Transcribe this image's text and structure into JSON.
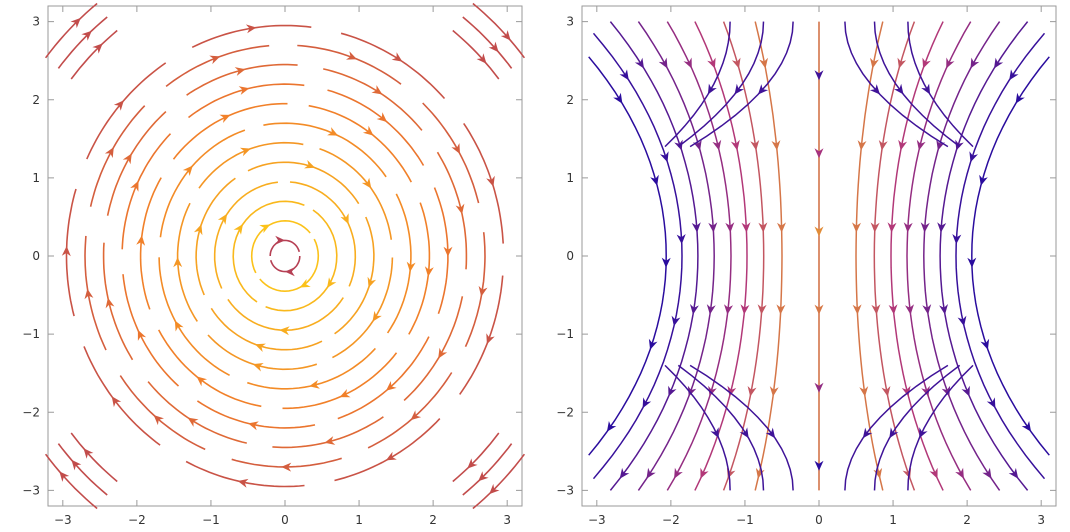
{
  "chart_data": [
    {
      "type": "streamplot",
      "field": "rotation",
      "xlim": [
        -3.2,
        3.2
      ],
      "ylim": [
        -3.2,
        3.2
      ],
      "xticks": [
        -3,
        -2,
        -1,
        0,
        1,
        2,
        3
      ],
      "yticks": [
        -3,
        -2,
        -1,
        0,
        1,
        2,
        3
      ],
      "grid": false,
      "color_scheme": {
        "low": "#a8325e",
        "mid": "#f07a2a",
        "high": "#fbc21a"
      }
    },
    {
      "type": "streamplot",
      "field": "saddle",
      "xlim": [
        -3.2,
        3.2
      ],
      "ylim": [
        -3.2,
        3.2
      ],
      "xticks": [
        -3,
        -2,
        -1,
        0,
        1,
        2,
        3
      ],
      "yticks": [
        -3,
        -2,
        -1,
        0,
        1,
        2,
        3
      ],
      "grid": false,
      "color_scheme": {
        "low": "#2a0c9e",
        "mid": "#b0357a",
        "high": "#f7b21a"
      }
    }
  ],
  "tick_text": {
    "p0": {
      "x": [
        "−3",
        "−2",
        "−1",
        "0",
        "1",
        "2",
        "3"
      ],
      "y": [
        "−3",
        "−2",
        "−1",
        "0",
        "1",
        "2",
        "3"
      ]
    },
    "p1": {
      "x": [
        "−3",
        "−2",
        "−1",
        "0",
        "1",
        "2",
        "3"
      ],
      "y": [
        "−3",
        "−2",
        "−1",
        "0",
        "1",
        "2",
        "3"
      ]
    }
  }
}
